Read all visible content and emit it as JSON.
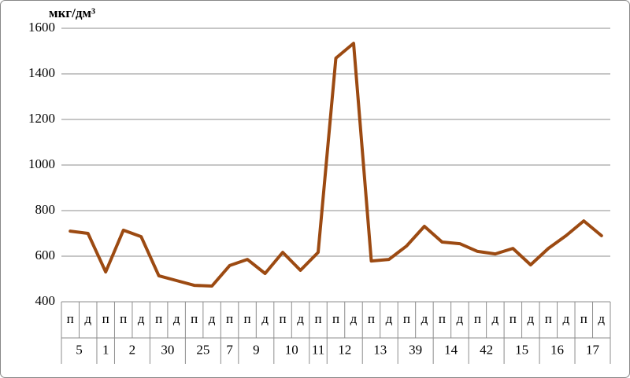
{
  "chart_data": {
    "type": "line",
    "y_label": "мкг/дм³",
    "color": "#9c4a12",
    "groups": [
      {
        "label": "5",
        "sublabels": [
          "п",
          "д"
        ]
      },
      {
        "label": "1",
        "sublabels": [
          "п"
        ]
      },
      {
        "label": "2",
        "sublabels": [
          "п",
          "д"
        ]
      },
      {
        "label": "30",
        "sublabels": [
          "п",
          "д"
        ]
      },
      {
        "label": "25",
        "sublabels": [
          "п",
          "д"
        ]
      },
      {
        "label": "7",
        "sublabels": [
          "п"
        ]
      },
      {
        "label": "9",
        "sublabels": [
          "п",
          "д"
        ]
      },
      {
        "label": "10",
        "sublabels": [
          "п",
          "д"
        ]
      },
      {
        "label": "11",
        "sublabels": [
          "п"
        ]
      },
      {
        "label": "12",
        "sublabels": [
          "п",
          "д"
        ]
      },
      {
        "label": "13",
        "sublabels": [
          "п",
          "д"
        ]
      },
      {
        "label": "39",
        "sublabels": [
          "п",
          "д"
        ]
      },
      {
        "label": "14",
        "sublabels": [
          "п",
          "д"
        ]
      },
      {
        "label": "42",
        "sublabels": [
          "п",
          "д"
        ]
      },
      {
        "label": "15",
        "sublabels": [
          "п",
          "д"
        ]
      },
      {
        "label": "16",
        "sublabels": [
          "п",
          "д"
        ]
      },
      {
        "label": "17",
        "sublabels": [
          "п",
          "д"
        ]
      }
    ],
    "values": [
      710,
      700,
      531,
      714,
      686,
      514,
      493,
      472,
      469,
      559,
      586,
      524,
      617,
      538,
      617,
      1469,
      1534,
      579,
      586,
      645,
      731,
      662,
      655,
      621,
      610,
      634,
      562,
      634,
      690,
      755,
      690
    ],
    "ylim": [
      400,
      1600
    ],
    "yticks": [
      400,
      600,
      800,
      1000,
      1200,
      1400,
      1600
    ],
    "grid": true
  }
}
